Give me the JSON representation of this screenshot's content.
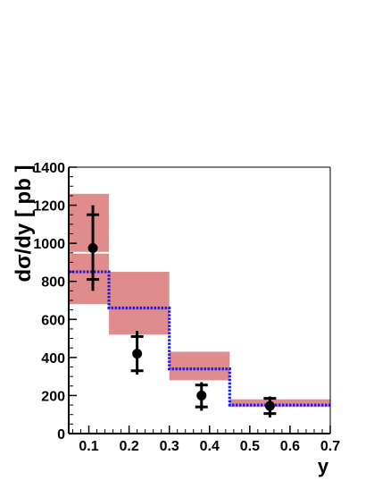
{
  "chart_data": {
    "type": "bar",
    "title": "",
    "xlabel": "y",
    "ylabel": "dσ/dy [ pb ]",
    "xlim": [
      0.05,
      0.7
    ],
    "ylim": [
      0,
      1400
    ],
    "xticks": [
      "0.1",
      "0.2",
      "0.3",
      "0.4",
      "0.5",
      "0.6",
      "0.7"
    ],
    "yticks": [
      "0",
      "200",
      "400",
      "600",
      "800",
      "1000",
      "1200",
      "1400"
    ],
    "xtick_values": [
      0.1,
      0.2,
      0.3,
      0.4,
      0.5,
      0.6,
      0.7
    ],
    "ytick_values": [
      0,
      200,
      400,
      600,
      800,
      1000,
      1200,
      1400
    ],
    "grid": false,
    "legend": "none",
    "bin_edges": [
      0.05,
      0.15,
      0.3,
      0.45,
      0.7
    ],
    "series": [
      {
        "kind": "uncertainty-band",
        "color": "#e08c8c",
        "bins": [
          {
            "x0": 0.05,
            "x1": 0.15,
            "low": 680,
            "high": 1260,
            "central": 950
          },
          {
            "x0": 0.15,
            "x1": 0.3,
            "low": 520,
            "high": 850,
            "central": null
          },
          {
            "x0": 0.3,
            "x1": 0.45,
            "low": 280,
            "high": 430,
            "central": null
          },
          {
            "x0": 0.45,
            "x1": 0.7,
            "low": 140,
            "high": 180,
            "central": null
          }
        ]
      },
      {
        "kind": "step-prediction",
        "color": "#1a1aff",
        "values": [
          850,
          660,
          340,
          150
        ]
      },
      {
        "kind": "data-points",
        "color": "#000000",
        "points": [
          {
            "x": 0.11,
            "y": 975,
            "stat_low": 810,
            "stat_high": 1150,
            "tot_low": 750,
            "tot_high": 1200
          },
          {
            "x": 0.22,
            "y": 420,
            "stat_low": 330,
            "stat_high": 510,
            "tot_low": 310,
            "tot_high": 540
          },
          {
            "x": 0.38,
            "y": 200,
            "stat_low": 140,
            "stat_high": 255,
            "tot_low": 120,
            "tot_high": 270
          },
          {
            "x": 0.55,
            "y": 145,
            "stat_low": 105,
            "stat_high": 185,
            "tot_low": 85,
            "tot_high": 195
          }
        ]
      }
    ]
  }
}
